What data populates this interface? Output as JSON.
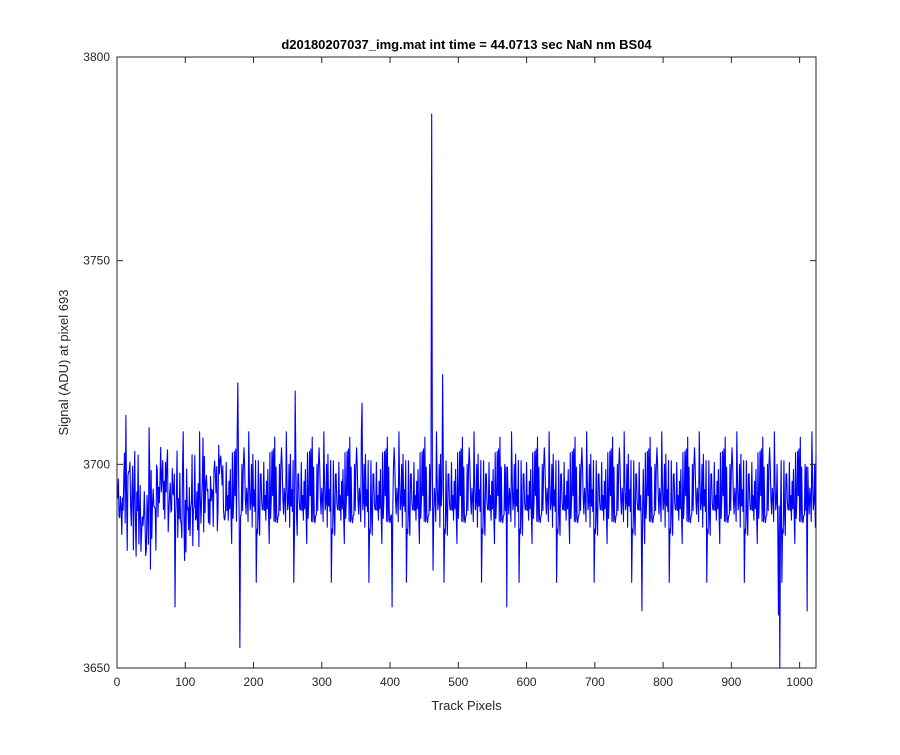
{
  "chart_data": {
    "type": "line",
    "title": "d20180207037_img.mat int time = 44.0713 sec  NaN nm BS04",
    "xlabel": "Track Pixels",
    "ylabel": "Signal (ADU) at pixel 693",
    "xlim": [
      0,
      1024
    ],
    "ylim": [
      3650,
      3800
    ],
    "xticks": [
      0,
      100,
      200,
      300,
      400,
      500,
      600,
      700,
      800,
      900,
      1000
    ],
    "yticks": [
      3650,
      3700,
      3750,
      3800
    ],
    "grid": false,
    "legend": "none",
    "series": [
      {
        "color": "#0000ff",
        "generator": {
          "n": 1024,
          "mean": 3690,
          "noise": 7.5,
          "seed": 37,
          "features": [
            {
              "x": 12,
              "y": 3712
            },
            {
              "x": 46,
              "y": 3709
            },
            {
              "x": 84,
              "y": 3665
            },
            {
              "x": 176,
              "y": 3720
            },
            {
              "x": 179,
              "y": 3655
            },
            {
              "x": 260,
              "y": 3718
            },
            {
              "x": 358,
              "y": 3715
            },
            {
              "x": 402,
              "y": 3665
            },
            {
              "x": 460,
              "y": 3786
            },
            {
              "x": 462,
              "y": 3674
            },
            {
              "x": 476,
              "y": 3722
            },
            {
              "x": 570,
              "y": 3665
            },
            {
              "x": 768,
              "y": 3664
            },
            {
              "x": 968,
              "y": 3663
            },
            {
              "x": 970,
              "y": 3650
            },
            {
              "x": 1010,
              "y": 3664
            }
          ]
        }
      }
    ]
  }
}
